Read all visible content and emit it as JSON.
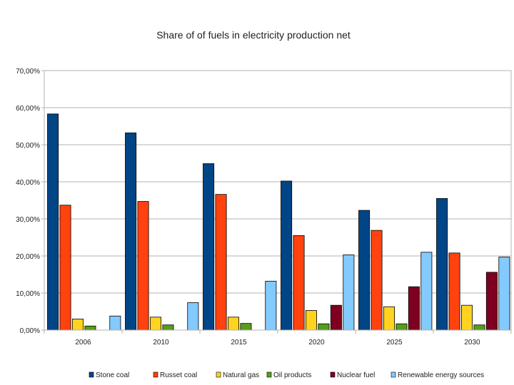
{
  "chart_data": {
    "type": "bar",
    "title": "Share of of fuels in electricity production net",
    "xlabel": "",
    "ylabel": "",
    "ylim": [
      0,
      70
    ],
    "y_ticks": [
      "0,00%",
      "10,00%",
      "20,00%",
      "30,00%",
      "40,00%",
      "50,00%",
      "60,00%",
      "70,00%"
    ],
    "grid": true,
    "legend_position": "bottom",
    "categories": [
      "2006",
      "2010",
      "2015",
      "2020",
      "2025",
      "2030"
    ],
    "series": [
      {
        "name": "Stone coal",
        "color": "#004586",
        "values": [
          58.3,
          53.2,
          44.9,
          40.2,
          32.3,
          35.5
        ]
      },
      {
        "name": "Russet coal",
        "color": "#ff420e",
        "values": [
          33.7,
          34.7,
          36.6,
          25.5,
          26.9,
          20.8
        ]
      },
      {
        "name": "Natural gas",
        "color": "#ffd320",
        "values": [
          3.0,
          3.5,
          3.5,
          5.3,
          6.3,
          6.7
        ]
      },
      {
        "name": "Oil products",
        "color": "#579d1c",
        "values": [
          1.1,
          1.4,
          1.8,
          1.7,
          1.7,
          1.4
        ]
      },
      {
        "name": "Nuclear fuel",
        "color": "#7e0021",
        "values": [
          0,
          0,
          0,
          6.7,
          11.7,
          15.6
        ]
      },
      {
        "name": "Renewable energy sources",
        "color": "#83caff",
        "values": [
          3.8,
          7.4,
          13.2,
          20.3,
          21.0,
          19.7
        ]
      }
    ]
  }
}
